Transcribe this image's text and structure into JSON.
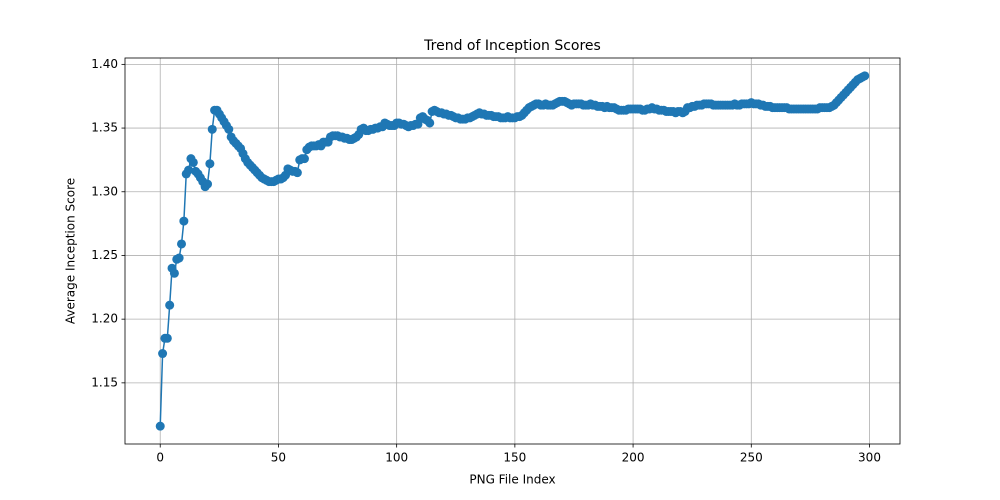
{
  "chart_data": {
    "type": "line",
    "title": "Trend of Inception Scores",
    "xlabel": "PNG File Index",
    "ylabel": "Average Inception Score",
    "color": "#1f77b4",
    "grid": true,
    "xlim": [
      -14.9,
      312.9
    ],
    "ylim": [
      1.102,
      1.405
    ],
    "xticks": [
      0,
      50,
      100,
      150,
      200,
      250,
      300
    ],
    "yticks": [
      1.15,
      {
        "value": 1.2,
        "label": "1.20"
      },
      1.25,
      {
        "value": 1.3,
        "label": "1.30"
      },
      1.35,
      {
        "value": 1.4,
        "label": "1.40"
      }
    ],
    "x": [
      0,
      1,
      2,
      3,
      4,
      5,
      6,
      7,
      8,
      9,
      10,
      11,
      12,
      13,
      14,
      15,
      16,
      17,
      18,
      19,
      20,
      21,
      22,
      23,
      24,
      25,
      26,
      27,
      28,
      29,
      30,
      31,
      32,
      33,
      34,
      35,
      36,
      37,
      38,
      39,
      40,
      41,
      42,
      43,
      44,
      45,
      46,
      47,
      48,
      49,
      50,
      51,
      52,
      53,
      54,
      55,
      56,
      57,
      58,
      59,
      60,
      61,
      62,
      63,
      64,
      65,
      66,
      67,
      68,
      69,
      70,
      71,
      72,
      73,
      74,
      75,
      76,
      77,
      78,
      79,
      80,
      81,
      82,
      83,
      84,
      85,
      86,
      87,
      88,
      89,
      90,
      91,
      92,
      93,
      94,
      95,
      96,
      97,
      98,
      99,
      100,
      101,
      102,
      103,
      104,
      105,
      106,
      107,
      108,
      109,
      110,
      111,
      112,
      113,
      114,
      115,
      116,
      117,
      118,
      119,
      120,
      121,
      122,
      123,
      124,
      125,
      126,
      127,
      128,
      129,
      130,
      131,
      132,
      133,
      134,
      135,
      136,
      137,
      138,
      139,
      140,
      141,
      142,
      143,
      144,
      145,
      146,
      147,
      148,
      149,
      150,
      151,
      152,
      153,
      154,
      155,
      156,
      157,
      158,
      159,
      160,
      161,
      162,
      163,
      164,
      165,
      166,
      167,
      168,
      169,
      170,
      171,
      172,
      173,
      174,
      175,
      176,
      177,
      178,
      179,
      180,
      181,
      182,
      183,
      184,
      185,
      186,
      187,
      188,
      189,
      190,
      191,
      192,
      193,
      194,
      195,
      196,
      197,
      198,
      199,
      200,
      201,
      202,
      203,
      204,
      205,
      206,
      207,
      208,
      209,
      210,
      211,
      212,
      213,
      214,
      215,
      216,
      217,
      218,
      219,
      220,
      221,
      222,
      223,
      224,
      225,
      226,
      227,
      228,
      229,
      230,
      231,
      232,
      233,
      234,
      235,
      236,
      237,
      238,
      239,
      240,
      241,
      242,
      243,
      244,
      245,
      246,
      247,
      248,
      249,
      250,
      251,
      252,
      253,
      254,
      255,
      256,
      257,
      258,
      259,
      260,
      261,
      262,
      263,
      264,
      265,
      266,
      267,
      268,
      269,
      270,
      271,
      272,
      273,
      274,
      275,
      276,
      277,
      278,
      279,
      280,
      281,
      282,
      283,
      284,
      285,
      286,
      287,
      288,
      289,
      290,
      291,
      292,
      293,
      294,
      295,
      296,
      297,
      298
    ],
    "values": [
      1.116,
      1.173,
      1.185,
      1.185,
      1.211,
      1.24,
      1.236,
      1.247,
      1.248,
      1.259,
      1.277,
      1.314,
      1.317,
      1.326,
      1.323,
      1.316,
      1.314,
      1.311,
      1.308,
      1.304,
      1.306,
      1.322,
      1.349,
      1.364,
      1.364,
      1.361,
      1.358,
      1.355,
      1.352,
      1.349,
      1.343,
      1.34,
      1.338,
      1.336,
      1.334,
      1.33,
      1.326,
      1.323,
      1.321,
      1.319,
      1.317,
      1.315,
      1.313,
      1.311,
      1.31,
      1.309,
      1.308,
      1.308,
      1.308,
      1.309,
      1.31,
      1.31,
      1.311,
      1.313,
      1.318,
      1.317,
      1.316,
      1.316,
      1.315,
      1.325,
      1.326,
      1.326,
      1.333,
      1.335,
      1.336,
      1.336,
      1.336,
      1.337,
      1.336,
      1.339,
      1.339,
      1.339,
      1.343,
      1.344,
      1.344,
      1.344,
      1.343,
      1.343,
      1.342,
      1.342,
      1.341,
      1.341,
      1.342,
      1.343,
      1.345,
      1.349,
      1.35,
      1.348,
      1.348,
      1.349,
      1.349,
      1.35,
      1.35,
      1.351,
      1.351,
      1.354,
      1.353,
      1.352,
      1.352,
      1.352,
      1.354,
      1.354,
      1.353,
      1.353,
      1.352,
      1.351,
      1.352,
      1.352,
      1.353,
      1.353,
      1.358,
      1.359,
      1.357,
      1.356,
      1.354,
      1.363,
      1.364,
      1.363,
      1.362,
      1.362,
      1.361,
      1.361,
      1.36,
      1.36,
      1.359,
      1.358,
      1.358,
      1.357,
      1.357,
      1.357,
      1.358,
      1.358,
      1.359,
      1.36,
      1.361,
      1.362,
      1.361,
      1.361,
      1.36,
      1.36,
      1.36,
      1.359,
      1.359,
      1.359,
      1.358,
      1.358,
      1.358,
      1.359,
      1.358,
      1.358,
      1.358,
      1.359,
      1.359,
      1.36,
      1.362,
      1.364,
      1.366,
      1.367,
      1.368,
      1.369,
      1.369,
      1.368,
      1.368,
      1.369,
      1.368,
      1.368,
      1.368,
      1.369,
      1.37,
      1.371,
      1.371,
      1.371,
      1.37,
      1.369,
      1.368,
      1.369,
      1.369,
      1.369,
      1.369,
      1.368,
      1.368,
      1.368,
      1.369,
      1.368,
      1.368,
      1.367,
      1.367,
      1.367,
      1.366,
      1.367,
      1.366,
      1.366,
      1.366,
      1.365,
      1.364,
      1.364,
      1.364,
      1.364,
      1.365,
      1.365,
      1.365,
      1.365,
      1.365,
      1.365,
      1.364,
      1.364,
      1.365,
      1.365,
      1.366,
      1.365,
      1.365,
      1.364,
      1.364,
      1.364,
      1.363,
      1.363,
      1.363,
      1.363,
      1.362,
      1.363,
      1.363,
      1.362,
      1.363,
      1.366,
      1.366,
      1.367,
      1.367,
      1.368,
      1.368,
      1.368,
      1.369,
      1.369,
      1.369,
      1.369,
      1.368,
      1.368,
      1.368,
      1.368,
      1.368,
      1.368,
      1.368,
      1.368,
      1.368,
      1.369,
      1.368,
      1.368,
      1.369,
      1.369,
      1.369,
      1.369,
      1.37,
      1.369,
      1.369,
      1.369,
      1.368,
      1.368,
      1.367,
      1.367,
      1.367,
      1.366,
      1.366,
      1.366,
      1.366,
      1.366,
      1.366,
      1.366,
      1.365,
      1.365,
      1.365,
      1.365,
      1.365,
      1.365,
      1.365,
      1.365,
      1.365,
      1.365,
      1.365,
      1.365,
      1.365,
      1.366,
      1.366,
      1.366,
      1.366,
      1.366,
      1.367,
      1.368,
      1.37,
      1.372,
      1.374,
      1.376,
      1.378,
      1.38,
      1.382,
      1.384,
      1.386,
      1.388,
      1.389,
      1.39,
      1.391
    ]
  }
}
